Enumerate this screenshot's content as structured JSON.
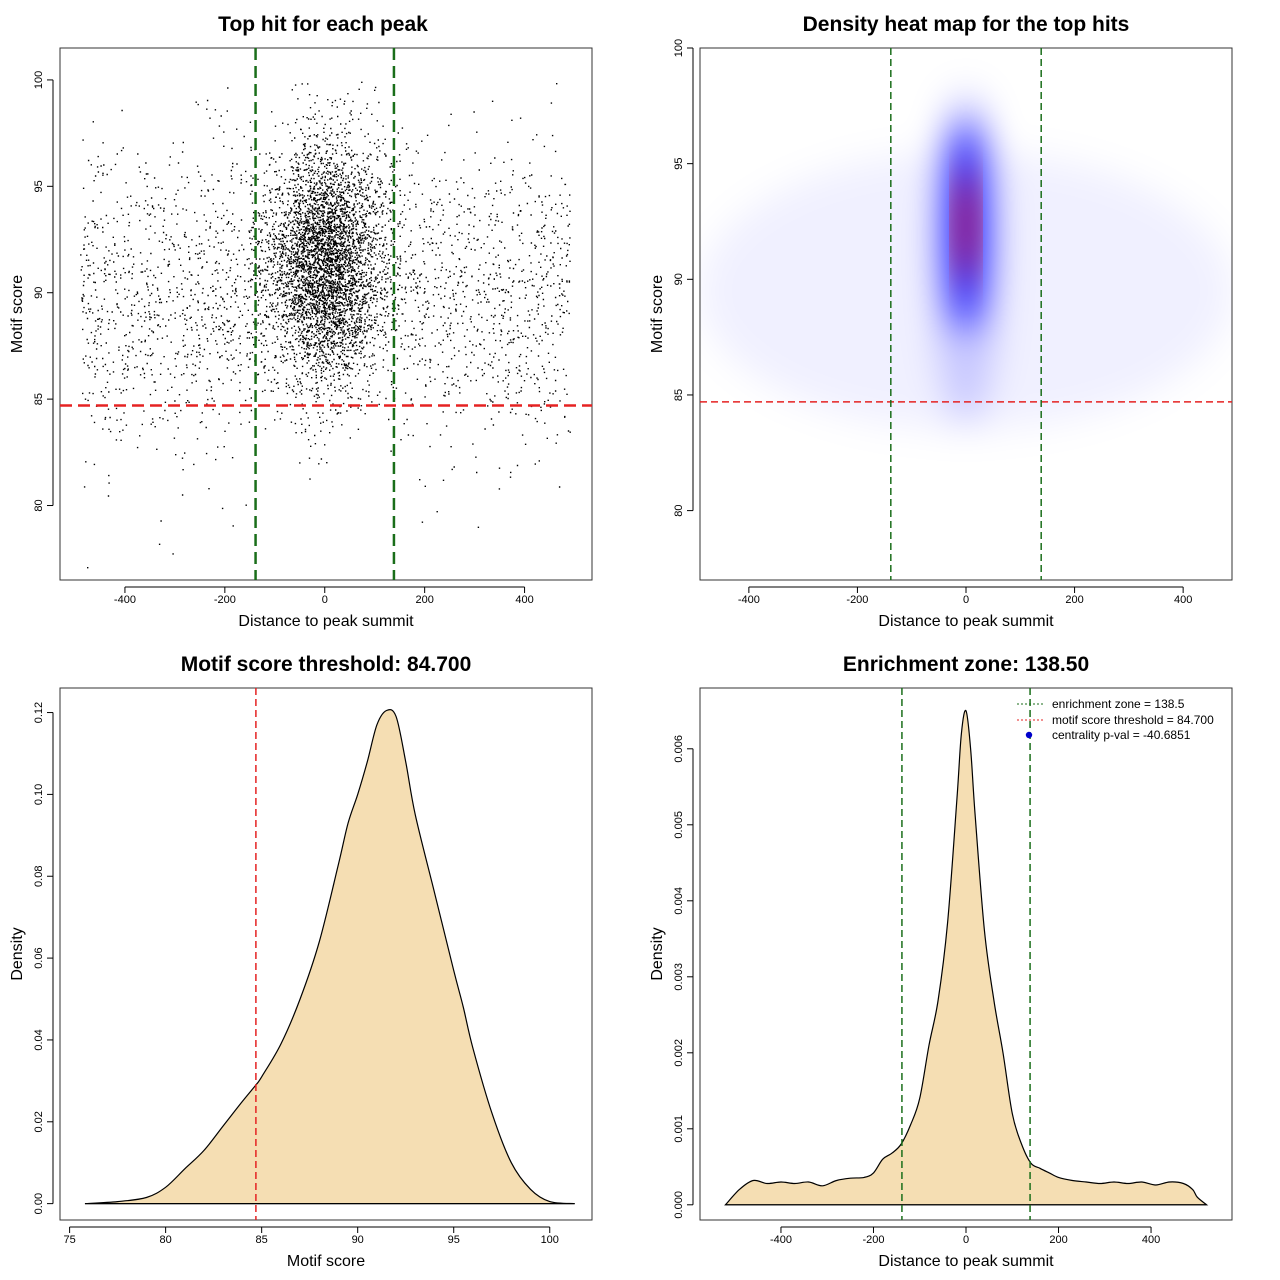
{
  "colors": {
    "points": "#000000",
    "enrichment_line": "#1a6e1a",
    "threshold_line": "#e52222",
    "density_fill": "#f5deb3",
    "density_outline": "#000000",
    "heat_low": "#ffffff",
    "heat_mid": "#0000ff",
    "heat_high": "#ff0000",
    "centrality_marker": "#0000cc"
  },
  "chart_data": [
    {
      "type": "scatter",
      "title": "Top hit for each peak",
      "xlabel": "Distance to peak summit",
      "ylabel": "Motif score",
      "xlim": [
        -530,
        535
      ],
      "ylim": [
        76.5,
        101.5
      ],
      "xticks": [
        -400,
        -200,
        0,
        200,
        400
      ],
      "yticks": [
        80,
        85,
        90,
        95,
        100
      ],
      "xtick_labels": [
        "-400",
        "-200",
        "0",
        "200",
        "400"
      ],
      "ytick_labels": [
        "80",
        "85",
        "90",
        "95",
        "100"
      ],
      "vlines": [
        -138.5,
        138.5
      ],
      "hline": 84.7,
      "points_summary": {
        "n_approx": 6500,
        "x_range": [
          -490,
          490
        ],
        "score_mean": 91.5,
        "score_sd": 3.4,
        "central_fraction": 0.6,
        "central_sd": 55
      }
    },
    {
      "type": "heatmap",
      "title": "Density heat map for the top hits",
      "xlabel": "Distance to peak summit",
      "ylabel": "Motif score",
      "xlim": [
        -490,
        490
      ],
      "ylim": [
        77,
        100
      ],
      "xticks": [
        -400,
        -200,
        0,
        200,
        400
      ],
      "yticks": [
        80,
        85,
        90,
        95,
        100
      ],
      "xtick_labels": [
        "-400",
        "-200",
        "0",
        "200",
        "400"
      ],
      "ytick_labels": [
        "80",
        "85",
        "90",
        "95",
        "100"
      ],
      "vlines": [
        -138.5,
        138.5
      ],
      "hline": 84.7,
      "density_peak": {
        "x": 0,
        "y": 92.3
      },
      "density_spread": {
        "x_sd": 28,
        "y_sd_upper": 2.2,
        "y_sd_lower": 1.8
      }
    },
    {
      "type": "area",
      "title": "Motif score threshold: 84.700",
      "xlabel": "Motif score",
      "ylabel": "Density",
      "xlim": [
        74.5,
        102.2
      ],
      "ylim": [
        -0.004,
        0.126
      ],
      "xticks": [
        75,
        80,
        85,
        90,
        95,
        100
      ],
      "yticks": [
        0,
        0.02,
        0.04,
        0.06,
        0.08,
        0.1,
        0.12
      ],
      "xtick_labels": [
        "75",
        "80",
        "85",
        "90",
        "95",
        "100"
      ],
      "ytick_labels": [
        "0.00",
        "0.02",
        "0.04",
        "0.06",
        "0.08",
        "0.10",
        "0.12"
      ],
      "vline": 84.7,
      "x": [
        75.8,
        77.5,
        79,
        80,
        81,
        82,
        83,
        84,
        84.7,
        85,
        86,
        87,
        88,
        89,
        89.5,
        90,
        90.5,
        91,
        91.5,
        92,
        92.5,
        93,
        94,
        95,
        95.5,
        96,
        97,
        98,
        99,
        100,
        101.3
      ],
      "y": [
        0.0,
        0.0005,
        0.0015,
        0.004,
        0.0085,
        0.013,
        0.019,
        0.025,
        0.029,
        0.031,
        0.039,
        0.05,
        0.064,
        0.083,
        0.093,
        0.1,
        0.108,
        0.117,
        0.1205,
        0.119,
        0.108,
        0.095,
        0.076,
        0.057,
        0.048,
        0.038,
        0.022,
        0.01,
        0.0035,
        0.0005,
        0.0
      ]
    },
    {
      "type": "area",
      "title": "Enrichment zone: 138.50",
      "xlabel": "Distance to peak summit",
      "ylabel": "Density",
      "xlim": [
        -575,
        575
      ],
      "ylim": [
        -0.0002,
        0.0068
      ],
      "xticks": [
        -400,
        -200,
        0,
        200,
        400
      ],
      "yticks": [
        0,
        0.001,
        0.002,
        0.003,
        0.004,
        0.005,
        0.006
      ],
      "xtick_labels": [
        "-400",
        "-200",
        "0",
        "200",
        "400"
      ],
      "ytick_labels": [
        "0.000",
        "0.001",
        "0.002",
        "0.003",
        "0.004",
        "0.005",
        "0.006"
      ],
      "vlines": [
        -138.5,
        138.5
      ],
      "x": [
        -520,
        -490,
        -460,
        -430,
        -400,
        -370,
        -340,
        -310,
        -280,
        -250,
        -220,
        -200,
        -180,
        -160,
        -140,
        -120,
        -100,
        -80,
        -60,
        -40,
        -20,
        -10,
        0,
        10,
        20,
        40,
        60,
        80,
        100,
        120,
        140,
        160,
        180,
        200,
        230,
        260,
        290,
        320,
        350,
        380,
        410,
        440,
        470,
        490,
        500,
        520
      ],
      "y": [
        0.0,
        0.0002,
        0.00032,
        0.00028,
        0.0003,
        0.00028,
        0.0003,
        0.00025,
        0.00032,
        0.00035,
        0.00036,
        0.00042,
        0.0006,
        0.00068,
        0.0008,
        0.00105,
        0.0014,
        0.0021,
        0.0027,
        0.0037,
        0.0053,
        0.0062,
        0.0065,
        0.006,
        0.0051,
        0.0036,
        0.0027,
        0.002,
        0.0012,
        0.0008,
        0.00055,
        0.00048,
        0.00042,
        0.00036,
        0.00032,
        0.0003,
        0.00028,
        0.0003,
        0.00028,
        0.0003,
        0.00026,
        0.0003,
        0.00028,
        0.0002,
        0.0001,
        0.0
      ],
      "legend": {
        "position": "top-right",
        "entries": [
          {
            "label": "enrichment zone = 138.5",
            "style": "dotted-green"
          },
          {
            "label": "motif score threshold = 84.700",
            "style": "dotted-red"
          },
          {
            "label": "centrality p-val = -40.6851",
            "style": "blue-point"
          }
        ]
      }
    }
  ]
}
